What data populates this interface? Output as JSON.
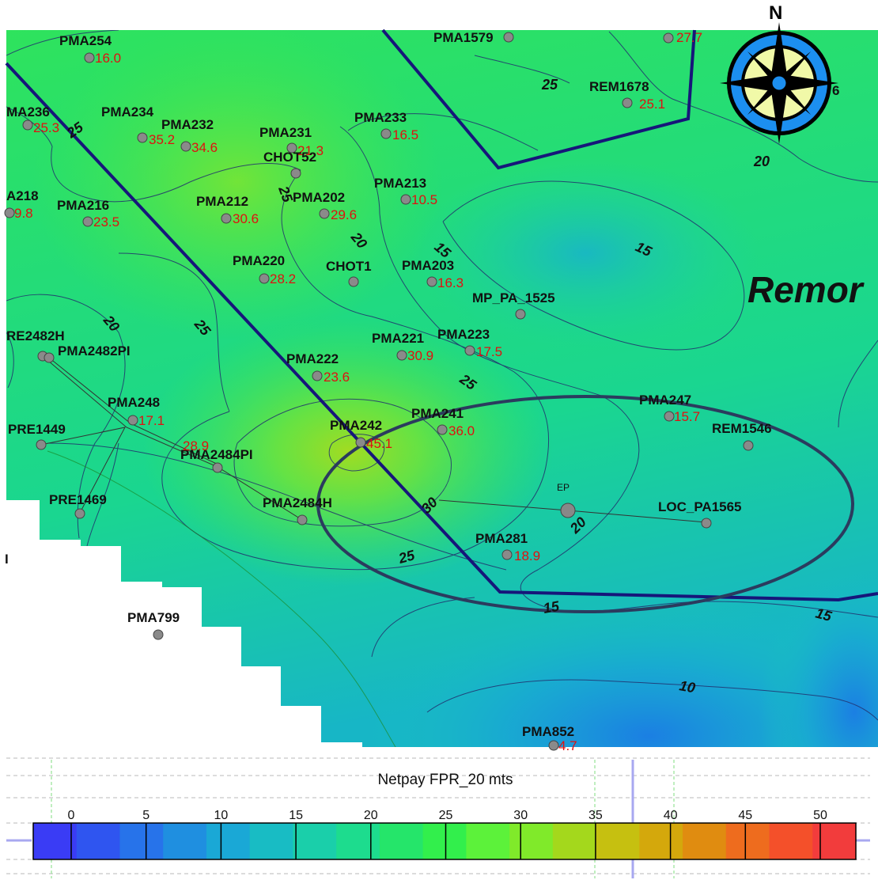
{
  "map": {
    "area_label": "Remor",
    "ep_label": "EP",
    "north_label": "N",
    "compass_partial": "6",
    "edge_marker": "I"
  },
  "wells": [
    {
      "name": "PMA254",
      "value": "16.0"
    },
    {
      "name": "PMA1579",
      "value": ""
    },
    {
      "name": "",
      "value": "27.7"
    },
    {
      "name": "REM1678",
      "value": "25.1"
    },
    {
      "name": "MA236",
      "value": "25.3"
    },
    {
      "name": "PMA234",
      "value": "35.2"
    },
    {
      "name": "PMA232",
      "value": "34.6"
    },
    {
      "name": "PMA231",
      "value": "21.3"
    },
    {
      "name": "PMA233",
      "value": "16.5"
    },
    {
      "name": "CHOT52",
      "value": ""
    },
    {
      "name": "PMA213",
      "value": "10.5"
    },
    {
      "name": "A218",
      "value": "9.8"
    },
    {
      "name": "PMA216",
      "value": "23.5"
    },
    {
      "name": "PMA212",
      "value": "30.6"
    },
    {
      "name": "PMA202",
      "value": "29.6"
    },
    {
      "name": "PMA220",
      "value": "28.2"
    },
    {
      "name": "CHOT1",
      "value": ""
    },
    {
      "name": "PMA203",
      "value": "16.3"
    },
    {
      "name": "MP_PA_1525",
      "value": ""
    },
    {
      "name": "RE2482H",
      "value": ""
    },
    {
      "name": "PMA2482PI",
      "value": ""
    },
    {
      "name": "PMA221",
      "value": "30.9"
    },
    {
      "name": "PMA223",
      "value": "17.5"
    },
    {
      "name": "PMA222",
      "value": "23.6"
    },
    {
      "name": "PMA248",
      "value": "17.1"
    },
    {
      "name": "PMA247",
      "value": "15.7"
    },
    {
      "name": "PMA241",
      "value": "36.0"
    },
    {
      "name": "PRE1449",
      "value": ""
    },
    {
      "name": "PMA242",
      "value": "45.1"
    },
    {
      "name": "REM1546",
      "value": ""
    },
    {
      "name": "PMA2484PI",
      "value": "28.9"
    },
    {
      "name": "LOC_PA1565",
      "value": ""
    },
    {
      "name": "PRE1469",
      "value": ""
    },
    {
      "name": "PMA2484H",
      "value": ""
    },
    {
      "name": "PMA281",
      "value": "18.9"
    },
    {
      "name": "PMA799",
      "value": ""
    },
    {
      "name": "PMA852",
      "value": "4.7"
    }
  ],
  "contour_labels": [
    "25",
    "25",
    "20",
    "15",
    "25",
    "20",
    "15",
    "20",
    "25",
    "25",
    "30",
    "20",
    "25",
    "15",
    "15",
    "10"
  ],
  "legend": {
    "title": "Netpay FPR_20 mts",
    "ticks": [
      "0",
      "5",
      "10",
      "15",
      "20",
      "25",
      "30",
      "35",
      "40",
      "45",
      "50"
    ],
    "colors": [
      "#3a3cf5",
      "#2f55f0",
      "#2773ea",
      "#1f8fe0",
      "#1aa8d6",
      "#18bcc4",
      "#1acfaa",
      "#1ddc8e",
      "#25e56a",
      "#32ef4c",
      "#5cf23a",
      "#80ea2a",
      "#a4d81c",
      "#c6c010",
      "#d4a80c",
      "#e08c10",
      "#ee6c1e",
      "#f4502a",
      "#f23c3c"
    ]
  }
}
